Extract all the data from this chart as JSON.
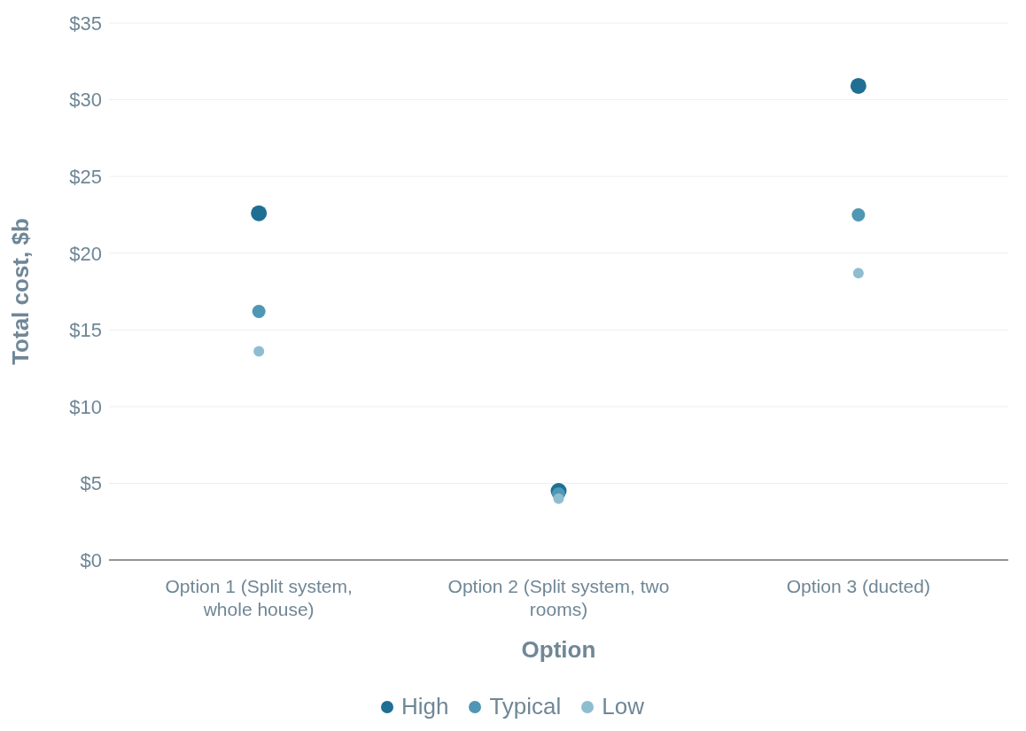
{
  "chart_data": {
    "type": "scatter",
    "xlabel": "Option",
    "ylabel": "Total cost, $b",
    "categories": [
      "Option 1 (Split system, whole house)",
      "Option 2 (Split system, two rooms)",
      "Option 3 (ducted)"
    ],
    "series": [
      {
        "name": "High",
        "color": "#1f6f94",
        "values": [
          22.6,
          4.5,
          30.9
        ]
      },
      {
        "name": "Typical",
        "color": "#4f97b5",
        "values": [
          16.2,
          4.3,
          22.5
        ]
      },
      {
        "name": "Low",
        "color": "#8fbdd0",
        "values": [
          13.6,
          4.0,
          18.7
        ]
      }
    ],
    "ylim": [
      0,
      35
    ],
    "yticks": [
      {
        "value": 0,
        "label": "$0"
      },
      {
        "value": 5,
        "label": "$5"
      },
      {
        "value": 10,
        "label": "$10"
      },
      {
        "value": 15,
        "label": "$15"
      },
      {
        "value": 20,
        "label": "$20"
      },
      {
        "value": 25,
        "label": "$25"
      },
      {
        "value": 30,
        "label": "$30"
      },
      {
        "value": 35,
        "label": "$35"
      }
    ],
    "grid": "y",
    "legend": "bottom",
    "marker": "circle"
  }
}
